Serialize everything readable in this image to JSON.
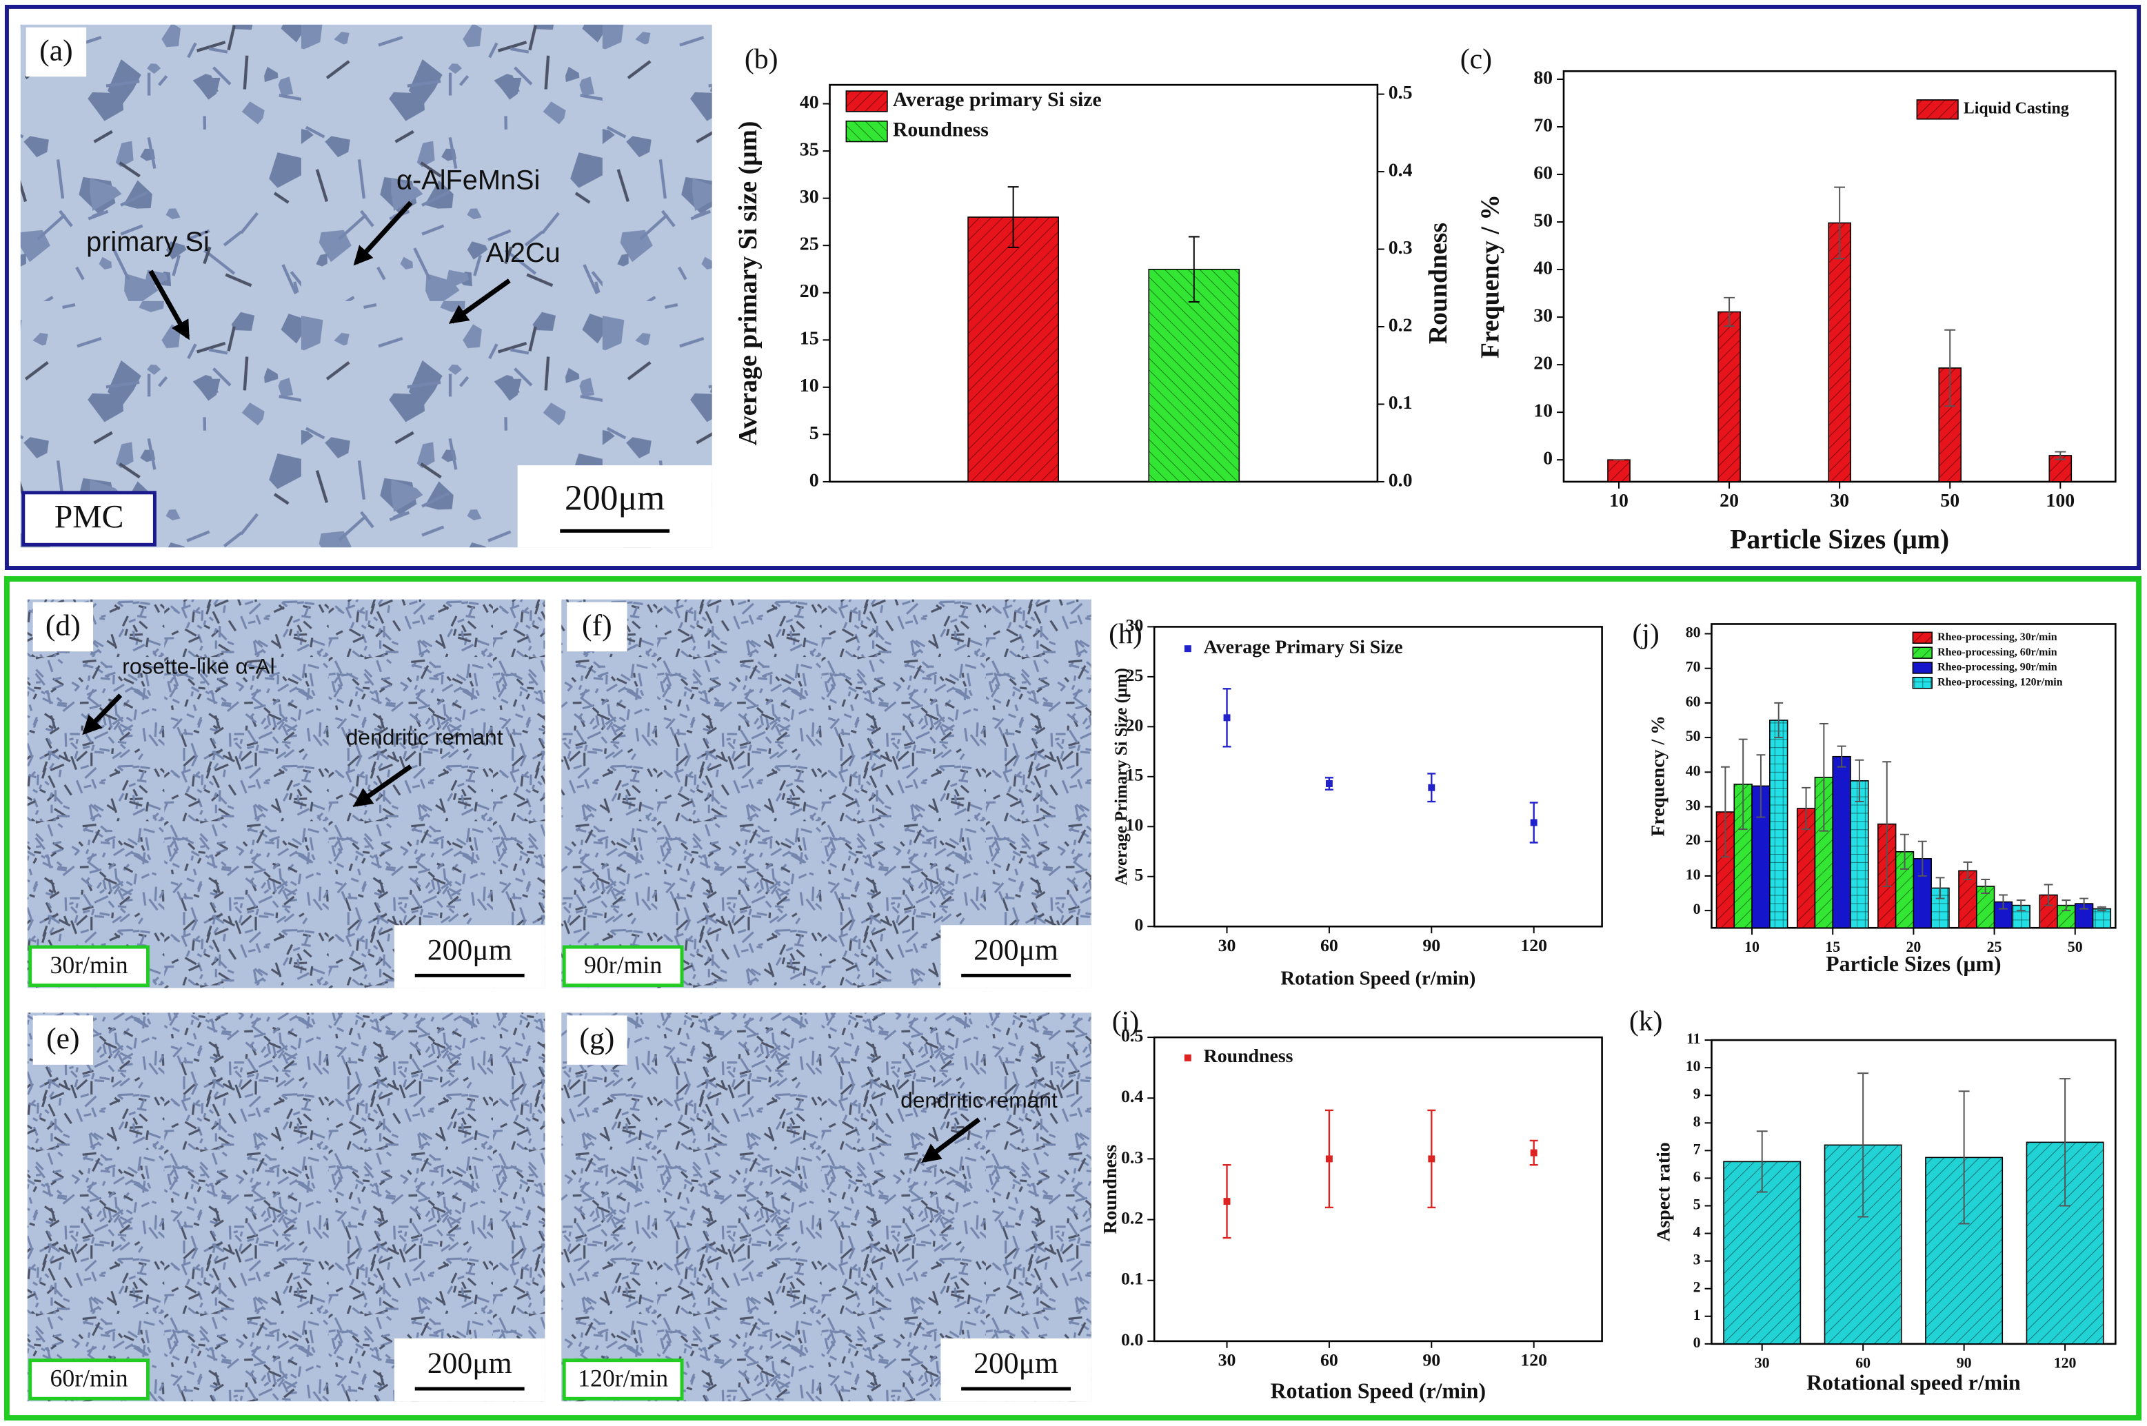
{
  "micrographs": [
    {
      "label": "(a)",
      "tag": "PMC",
      "scale_bar": "200μm",
      "annotations": [
        "primary Si",
        "α-AlFeMnSi",
        "Al2Cu"
      ]
    },
    {
      "label": "(d)",
      "tag": "30r/min",
      "scale_bar": "200μm",
      "annotations": [
        "rosette-like α-Al",
        "dendritic remant"
      ]
    },
    {
      "label": "(e)",
      "tag": "60r/min",
      "scale_bar": "200μm"
    },
    {
      "label": "(f)",
      "tag": "90r/min",
      "scale_bar": "200μm"
    },
    {
      "label": "(g)",
      "tag": "120r/min",
      "scale_bar": "200μm",
      "annotations": [
        "dendritic remant"
      ]
    }
  ],
  "chart_data": [
    {
      "type": "bar",
      "panel": "(b)",
      "ylabel": "Average primary Si size (μm)",
      "y2label": "Roundness",
      "ylim": [
        0,
        42
      ],
      "yticks": [
        0,
        5,
        10,
        15,
        20,
        25,
        30,
        35,
        40
      ],
      "y2lim": [
        0,
        0.512
      ],
      "y2ticks": [
        {
          "value": 0,
          "label": "0.0"
        },
        0.1,
        0.2,
        0.3,
        0.4,
        0.5
      ],
      "legend": "upper left",
      "series": [
        {
          "name": "Average primary Si size",
          "color": "#e8141b",
          "hatch": "/",
          "values": [
            28.0
          ],
          "errors": [
            3.2
          ]
        },
        {
          "name": "Roundness",
          "color": "#33e633",
          "hatch": "\\",
          "axis": "y2",
          "values": [
            0.274
          ],
          "errors": [
            0.042
          ]
        }
      ]
    },
    {
      "type": "bar",
      "panel": "(c)",
      "xlabel": "Particle Sizes (μm)",
      "ylabel": "Frequency / %",
      "categories": [
        "10",
        "20",
        "30",
        "50",
        "100"
      ],
      "ylim": [
        -4.6,
        81.7
      ],
      "yticks": [
        0,
        10,
        20,
        30,
        40,
        50,
        60,
        70,
        80
      ],
      "legend": "upper right",
      "series": [
        {
          "name": "Liquid Casting",
          "color": "#e8141b",
          "hatch": "/",
          "values": [
            0,
            31.1,
            49.8,
            19.3,
            0.9
          ],
          "errors": [
            0,
            3,
            7.5,
            8,
            0.8
          ]
        }
      ]
    },
    {
      "type": "scatter",
      "panel": "(h)",
      "xlabel": "Rotation Speed (r/min)",
      "ylabel": "Average Primary Si Size (μm)",
      "x": [
        30,
        60,
        90,
        120
      ],
      "xlim": [
        8.7,
        140
      ],
      "xticks": [
        30,
        60,
        90,
        120
      ],
      "ylim": [
        0,
        30
      ],
      "yticks": [
        0,
        5,
        10,
        15,
        20,
        25,
        30
      ],
      "legend": "upper left",
      "series": [
        {
          "name": "Average Primary Si Size",
          "color": "#2222cc",
          "values": [
            20.9,
            14.3,
            13.9,
            10.4
          ],
          "errors": [
            2.9,
            0.6,
            1.4,
            2.0
          ]
        }
      ]
    },
    {
      "type": "scatter",
      "panel": "(i)",
      "xlabel": "Rotation Speed (r/min)",
      "ylabel": "Roundness",
      "x": [
        30,
        60,
        90,
        120
      ],
      "xlim": [
        8.7,
        140
      ],
      "xticks": [
        30,
        60,
        90,
        120
      ],
      "ylim": [
        0,
        0.5
      ],
      "yticks": [
        {
          "value": 0,
          "label": "0.0"
        },
        0.1,
        0.2,
        0.3,
        0.4,
        0.5
      ],
      "legend": "upper left",
      "series": [
        {
          "name": "Roundness",
          "color": "#dd2222",
          "values": [
            0.23,
            0.3,
            0.3,
            0.31
          ],
          "errors": [
            0.06,
            0.08,
            0.08,
            0.02
          ]
        }
      ]
    },
    {
      "type": "bar",
      "panel": "(j)",
      "xlabel": "Particle Sizes (μm)",
      "ylabel": "Frequency / %",
      "categories": [
        "10",
        "15",
        "20",
        "25",
        "50"
      ],
      "ylim": [
        -5,
        82.8
      ],
      "yticks": [
        0,
        10,
        20,
        30,
        40,
        50,
        60,
        70,
        80
      ],
      "legend": "upper right",
      "series": [
        {
          "name": "Rheo-processing, 30r/min",
          "color": "#e8141b",
          "hatch": "/",
          "values": [
            28.5,
            29.5,
            25,
            11.5,
            4.5
          ],
          "errors": [
            13,
            6,
            18,
            2.5,
            3
          ]
        },
        {
          "name": "Rheo-processing, 60r/min",
          "color": "#33e633",
          "hatch": "/",
          "values": [
            36.5,
            38.5,
            17,
            7,
            1.5
          ],
          "errors": [
            13,
            15.5,
            5,
            2,
            1.5
          ]
        },
        {
          "name": "Rheo-processing, 90r/min",
          "color": "#1515cc",
          "values": [
            36,
            44.5,
            15,
            2.5,
            2
          ],
          "errors": [
            9,
            3,
            5,
            2,
            1.5
          ]
        },
        {
          "name": "Rheo-processing, 120r/min",
          "color": "#22e0e6",
          "hatch": "+",
          "values": [
            55,
            37.5,
            6.5,
            1.5,
            0.5
          ],
          "errors": [
            5,
            6,
            3,
            1.5,
            0.5
          ]
        }
      ]
    },
    {
      "type": "bar",
      "panel": "(k)",
      "xlabel": "Rotational speed r/min",
      "ylabel": "Aspect ratio",
      "categories": [
        "30",
        "60",
        "90",
        "120"
      ],
      "ylim": [
        0,
        11
      ],
      "yticks": [
        0,
        1,
        2,
        3,
        4,
        5,
        6,
        7,
        8,
        9,
        10,
        11
      ],
      "series": [
        {
          "name": "Aspect ratio",
          "color": "#22d3d6",
          "hatch": "/",
          "values": [
            6.6,
            7.2,
            6.75,
            7.3
          ],
          "errors": [
            1.1,
            2.6,
            2.4,
            2.3
          ]
        }
      ]
    }
  ]
}
